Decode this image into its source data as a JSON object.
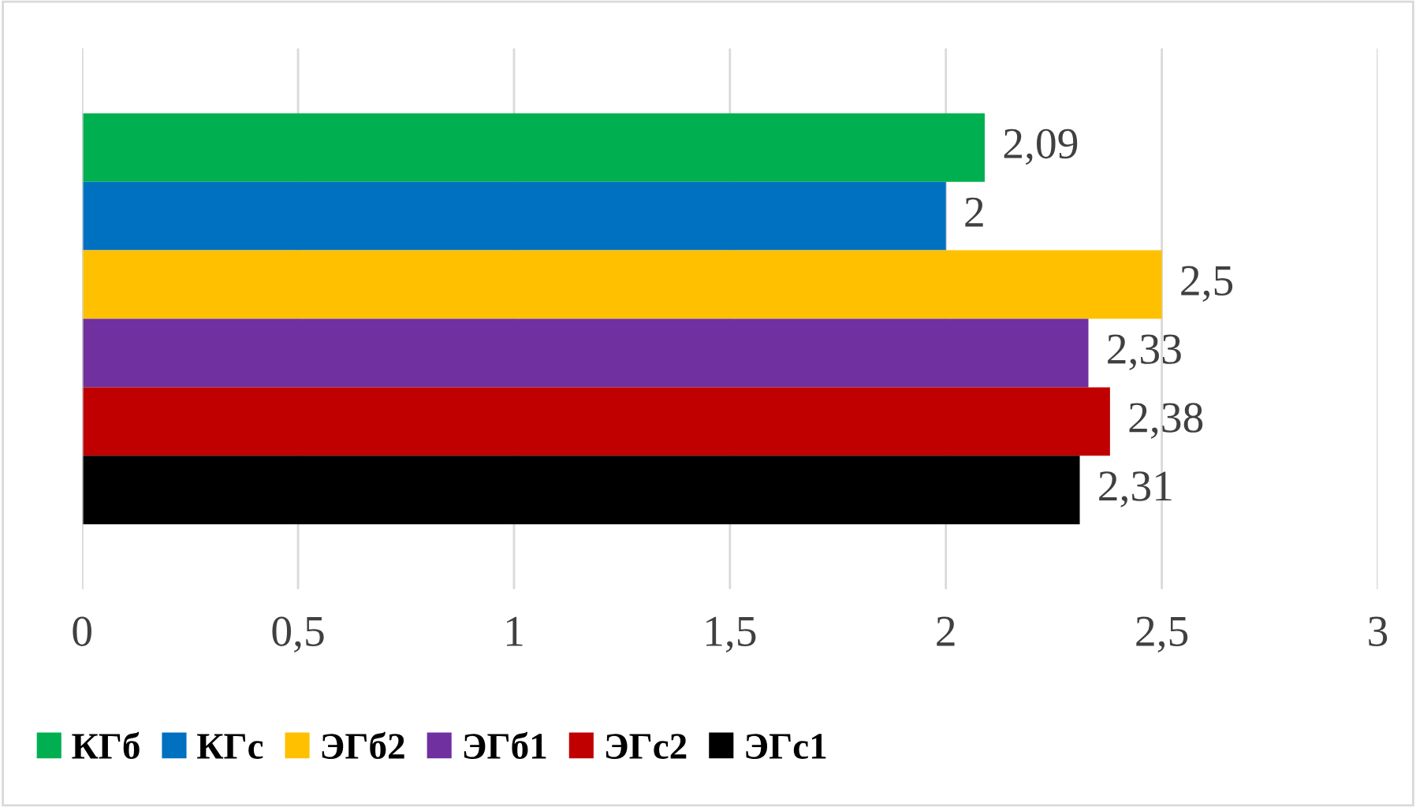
{
  "chart_data": {
    "type": "bar",
    "orientation": "horizontal",
    "categories": [
      null
    ],
    "series": [
      {
        "name": "КГб",
        "color": "#00b050",
        "values": [
          2.09
        ],
        "value_labels": [
          "2,09"
        ]
      },
      {
        "name": "КГс",
        "color": "#0070c0",
        "values": [
          2
        ],
        "value_labels": [
          "2"
        ]
      },
      {
        "name": "ЭГб2",
        "color": "#ffc000",
        "values": [
          2.5
        ],
        "value_labels": [
          "2,5"
        ]
      },
      {
        "name": "ЭГб1",
        "color": "#7030a0",
        "values": [
          2.33
        ],
        "value_labels": [
          "2,33"
        ]
      },
      {
        "name": "ЭГс2",
        "color": "#c00000",
        "values": [
          2.38
        ],
        "value_labels": [
          "2,38"
        ]
      },
      {
        "name": "ЭГс1",
        "color": "#000000",
        "values": [
          2.31
        ],
        "value_labels": [
          "2,31"
        ]
      }
    ],
    "xlim": [
      0,
      3
    ],
    "xticks": [
      0,
      {
        "value": 0.5,
        "label": "0,5"
      },
      1,
      {
        "value": 1.5,
        "label": "1,5"
      },
      2,
      {
        "value": 2.5,
        "label": "2,5"
      },
      3
    ],
    "grid": "x",
    "legend": "bottom"
  }
}
